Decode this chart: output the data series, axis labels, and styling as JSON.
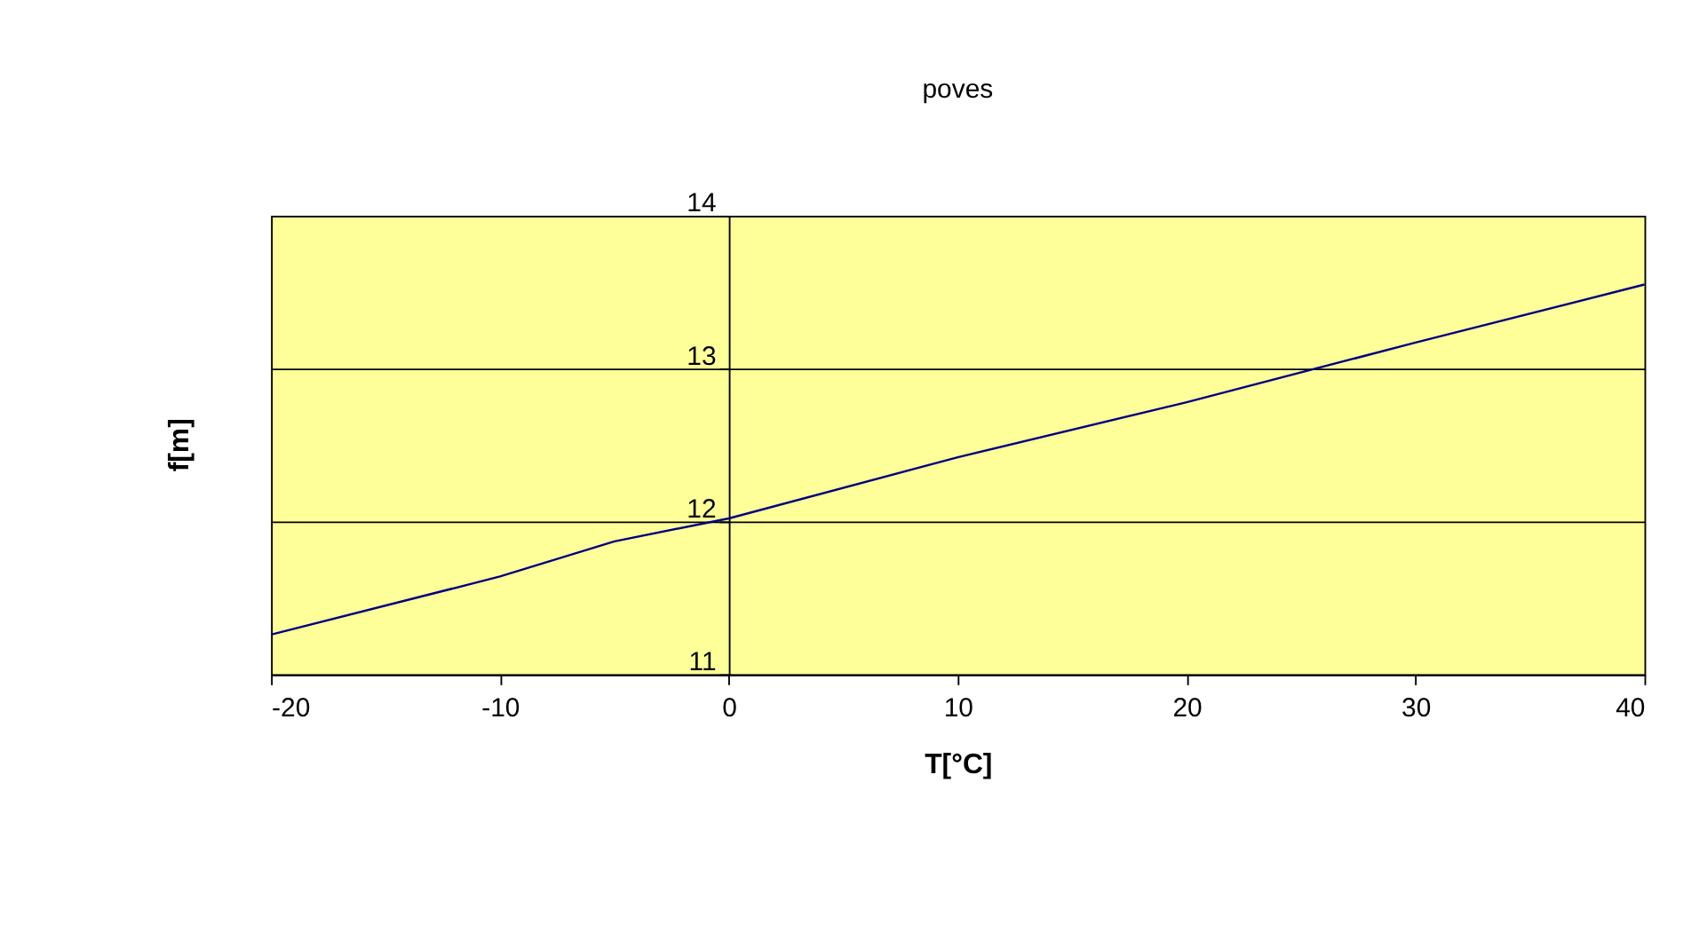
{
  "chart_data": {
    "type": "line",
    "title": "poves",
    "xlabel": "T[°C]",
    "ylabel": "f[m]",
    "x": [
      -20,
      -10,
      -5,
      0,
      10,
      20,
      30,
      40
    ],
    "series": [
      {
        "color": "#000080",
        "values": [
          11.26,
          11.64,
          11.87,
          12.02,
          12.42,
          12.78,
          13.17,
          13.55
        ]
      }
    ],
    "xlim": [
      -20,
      40
    ],
    "xticks": [
      -20,
      -10,
      0,
      10,
      20,
      30,
      40
    ],
    "ylim": [
      11,
      14
    ],
    "yticks": [
      11,
      12,
      13,
      14
    ],
    "grid": "y",
    "legend": false,
    "marker": "none",
    "line_style": "solid"
  }
}
